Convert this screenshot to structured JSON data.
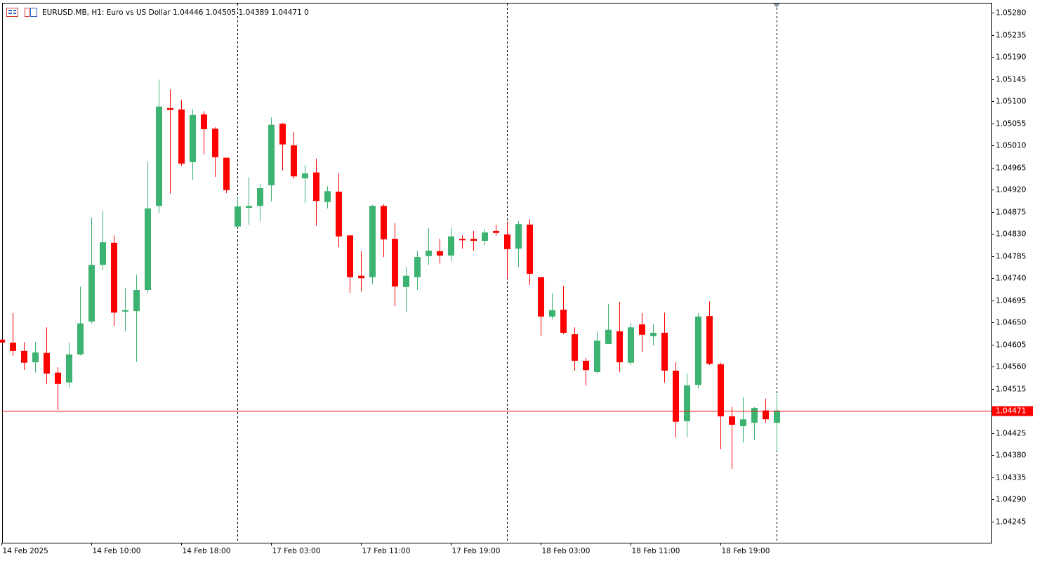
{
  "chart_data": {
    "type": "candlestick",
    "title": "EURUSD.MB, H1:  Euro vs US Dollar  1.04446 1.04505 1.04389 1.04471  0",
    "categories": [
      "14 Feb 2025",
      null,
      null,
      null,
      null,
      null,
      null,
      null,
      "14 Feb 10:00",
      null,
      null,
      null,
      null,
      null,
      null,
      null,
      "14 Feb 18:00",
      null,
      null,
      null,
      null,
      null,
      null,
      null,
      "17 Feb 03:00",
      null,
      null,
      null,
      null,
      null,
      null,
      null,
      "17 Feb 11:00",
      null,
      null,
      null,
      null,
      null,
      null,
      null,
      "17 Feb 19:00",
      null,
      null,
      null,
      null,
      null,
      null,
      null,
      "18 Feb 03:00",
      null,
      null,
      null,
      null,
      null,
      null,
      null,
      "18 Feb 11:00",
      null,
      null,
      null,
      null,
      null,
      null,
      null,
      "18 Feb 19:00",
      null,
      null,
      null,
      null,
      null
    ],
    "open": [
      1.04615,
      1.04609,
      1.04592,
      1.04569,
      1.04588,
      1.04548,
      1.04528,
      1.04585,
      1.04652,
      1.04767,
      1.04812,
      1.04672,
      1.04673,
      1.04716,
      1.04887,
      1.05086,
      1.05083,
      1.04976,
      1.05073,
      1.05044,
      1.04985,
      1.04845,
      1.04883,
      1.04887,
      1.04929,
      1.05054,
      1.0501,
      1.04943,
      1.04955,
      1.04895,
      1.04916,
      1.04827,
      1.04745,
      1.04742,
      1.04887,
      1.0482,
      1.04722,
      1.04742,
      1.04785,
      1.04795,
      1.04786,
      1.0482,
      1.0482,
      1.04816,
      1.04836,
      1.04829,
      1.048,
      1.04849,
      1.04742,
      1.04662,
      1.04676,
      1.04626,
      1.04572,
      1.04549,
      1.04606,
      1.04632,
      1.04568,
      1.04646,
      1.04622,
      1.04629,
      1.04552,
      1.04449,
      1.04523,
      1.04663,
      1.04565,
      1.04459,
      1.04439,
      1.04446,
      1.04471,
      1.04446
    ],
    "high": [
      1.04615,
      1.04669,
      1.0461,
      1.0461,
      1.0464,
      1.04559,
      1.04609,
      1.04723,
      1.04863,
      1.04877,
      1.04827,
      1.0472,
      1.04747,
      1.04977,
      1.05144,
      1.05124,
      1.05102,
      1.05084,
      1.0508,
      1.05047,
      1.04985,
      1.04906,
      1.04945,
      1.04932,
      1.05067,
      1.05056,
      1.05037,
      1.0497,
      1.04983,
      1.04927,
      1.04953,
      1.04827,
      1.04795,
      1.04889,
      1.0489,
      1.04852,
      1.04763,
      1.04796,
      1.04842,
      1.0482,
      1.04843,
      1.04827,
      1.04836,
      1.0484,
      1.04849,
      1.04855,
      1.04856,
      1.0486,
      1.04742,
      1.04709,
      1.04725,
      1.0464,
      1.04578,
      1.04632,
      1.04688,
      1.04692,
      1.04649,
      1.04669,
      1.04646,
      1.0467,
      1.04569,
      1.04546,
      1.04669,
      1.04693,
      1.04568,
      1.04478,
      1.04498,
      1.04478,
      1.04495,
      1.04505
    ],
    "low": [
      1.04609,
      1.04582,
      1.04553,
      1.04548,
      1.04525,
      1.04472,
      1.04518,
      1.04583,
      1.04648,
      1.04757,
      1.04643,
      1.04632,
      1.0457,
      1.0471,
      1.04873,
      1.04912,
      1.04969,
      1.0494,
      1.04992,
      1.04946,
      1.04913,
      1.04843,
      1.04849,
      1.04856,
      1.04896,
      1.04959,
      1.04942,
      1.04893,
      1.04847,
      1.04882,
      1.04803,
      1.0471,
      1.04713,
      1.04728,
      1.04783,
      1.04683,
      1.04672,
      1.04716,
      1.04767,
      1.0477,
      1.04775,
      1.048,
      1.04796,
      1.04807,
      1.04826,
      1.0474,
      1.04763,
      1.04726,
      1.04623,
      1.04656,
      1.04626,
      1.04552,
      1.04522,
      1.04546,
      1.04606,
      1.04549,
      1.04563,
      1.0459,
      1.04603,
      1.04528,
      1.04416,
      1.04416,
      1.04516,
      1.04563,
      1.04392,
      1.04352,
      1.04406,
      1.04411,
      1.04446,
      1.04389
    ],
    "close": [
      1.04609,
      1.04592,
      1.04568,
      1.04589,
      1.04546,
      1.04525,
      1.04585,
      1.04648,
      1.04767,
      1.04813,
      1.0467,
      1.04675,
      1.04716,
      1.04882,
      1.05089,
      1.05082,
      1.04973,
      1.05072,
      1.05043,
      1.04986,
      1.04919,
      1.04886,
      1.04887,
      1.04923,
      1.05052,
      1.05012,
      1.04947,
      1.04953,
      1.04897,
      1.04917,
      1.04825,
      1.04742,
      1.0474,
      1.04887,
      1.04819,
      1.04723,
      1.04745,
      1.04783,
      1.04796,
      1.04786,
      1.04825,
      1.04817,
      1.04816,
      1.04833,
      1.04832,
      1.04799,
      1.0485,
      1.04749,
      1.04662,
      1.04675,
      1.04629,
      1.04572,
      1.04553,
      1.04613,
      1.04635,
      1.04569,
      1.0464,
      1.04625,
      1.04629,
      1.04552,
      1.04448,
      1.04522,
      1.04662,
      1.04566,
      1.04459,
      1.04442,
      1.04453,
      1.04476,
      1.04453,
      1.04471
    ],
    "up_color": "#3cb371",
    "down_color": "#ff0000",
    "last_price": 1.04471,
    "last_price_color": "#ff0000",
    "ylim": [
      1.04202,
      1.053
    ],
    "yticks": [
      {
        "value": 1.0528,
        "label": "1.05280"
      },
      1.05235,
      {
        "value": 1.0519,
        "label": "1.05190"
      },
      1.05145,
      {
        "value": 1.051,
        "label": "1.05100"
      },
      1.05055,
      {
        "value": 1.0501,
        "label": "1.05010"
      },
      1.04965,
      {
        "value": 1.0492,
        "label": "1.04920"
      },
      1.04875,
      {
        "value": 1.0483,
        "label": "1.04830"
      },
      1.04785,
      {
        "value": 1.0474,
        "label": "1.04740"
      },
      1.04695,
      {
        "value": 1.0465,
        "label": "1.04650"
      },
      1.04605,
      {
        "value": 1.0456,
        "label": "1.04560"
      },
      1.04515,
      1.04425,
      {
        "value": 1.0438,
        "label": "1.04380"
      },
      1.04335,
      {
        "value": 1.0429,
        "label": "1.04290"
      },
      1.04245
    ],
    "grid": false
  }
}
